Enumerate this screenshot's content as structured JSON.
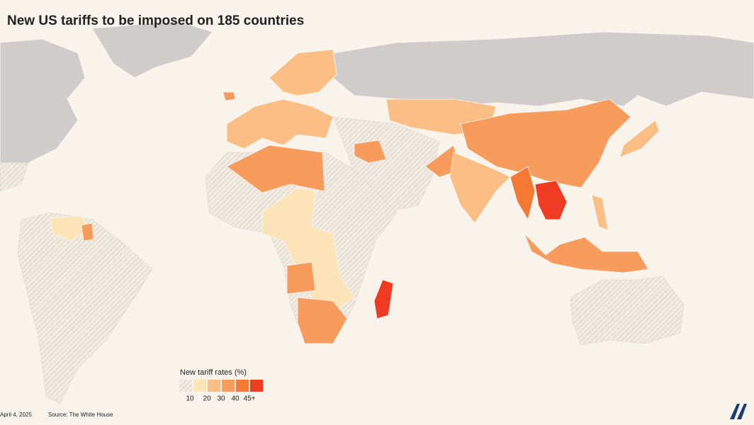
{
  "title": "New US tariffs to be imposed on 185 countries",
  "legend": {
    "title": "New tariff rates (%)",
    "swatches": [
      "hatch",
      "#fde3b8",
      "#fbbf86",
      "#f79c5c",
      "#f47a34",
      "#ee3b22"
    ],
    "labels": [
      "10",
      "20",
      "30",
      "40",
      "45+"
    ]
  },
  "footer": {
    "date": "April 4, 2025",
    "source": "Source: The White House"
  }
}
